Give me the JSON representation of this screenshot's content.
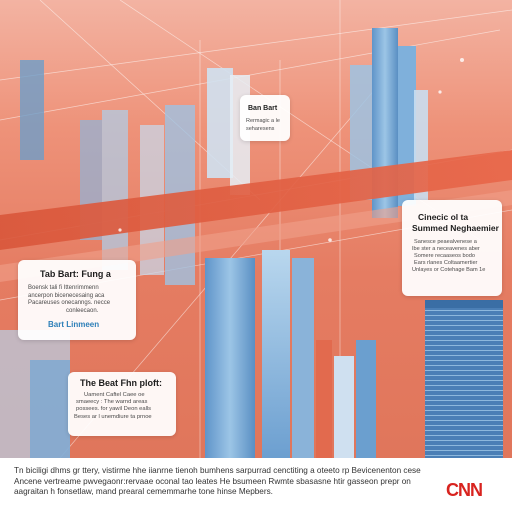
{
  "cards": {
    "top": {
      "title": "Ban Bart",
      "lines": [
        "Rermagic a le",
        "seharesens"
      ]
    },
    "left": {
      "title": "Tab Bart: Fung a",
      "lines": [
        "Boensk tali fi Ittenrimmenn",
        "ancerpon bicenecesaing aca",
        "Pacareuses onecanngs. necce",
        "conleecaon."
      ],
      "accent": "Bart Linmeen"
    },
    "right": {
      "title": "Cinecic ol ta",
      "subtitle": "Summed Neghaemier",
      "lines": [
        "Sanesce peaealvenese a",
        "Ibe ster a neceavenes aber",
        "Somere recaaseos bodo",
        "Ears rlanes Coltaamertier",
        "Unlayes or Cotehage Bam 1e"
      ]
    },
    "bottom": {
      "title": "The Beat Fhn ploft:",
      "lines": [
        "Uament Caftel Caee oe",
        "smaeecy : The warnd areas",
        "possees. for yawil Deon ealls",
        "Beses ar l unemdiure ta prnoe"
      ]
    }
  },
  "caption": {
    "text": "Tn biciligi dhms gr ttery, vistirme hhe iianrne tienoh bumhens sarpurrad cenctiting a oteeto rp Bevicenenton cese Ancene vertreame pwvegaonr:rervaae oconal tao leates He bsumeen Rwmte sbasasne htir gasseon prepr on aagraitan h fonsetlaw, mand prearal cememmarhe tone hinse Mepbers."
  },
  "logo": "CNN"
}
